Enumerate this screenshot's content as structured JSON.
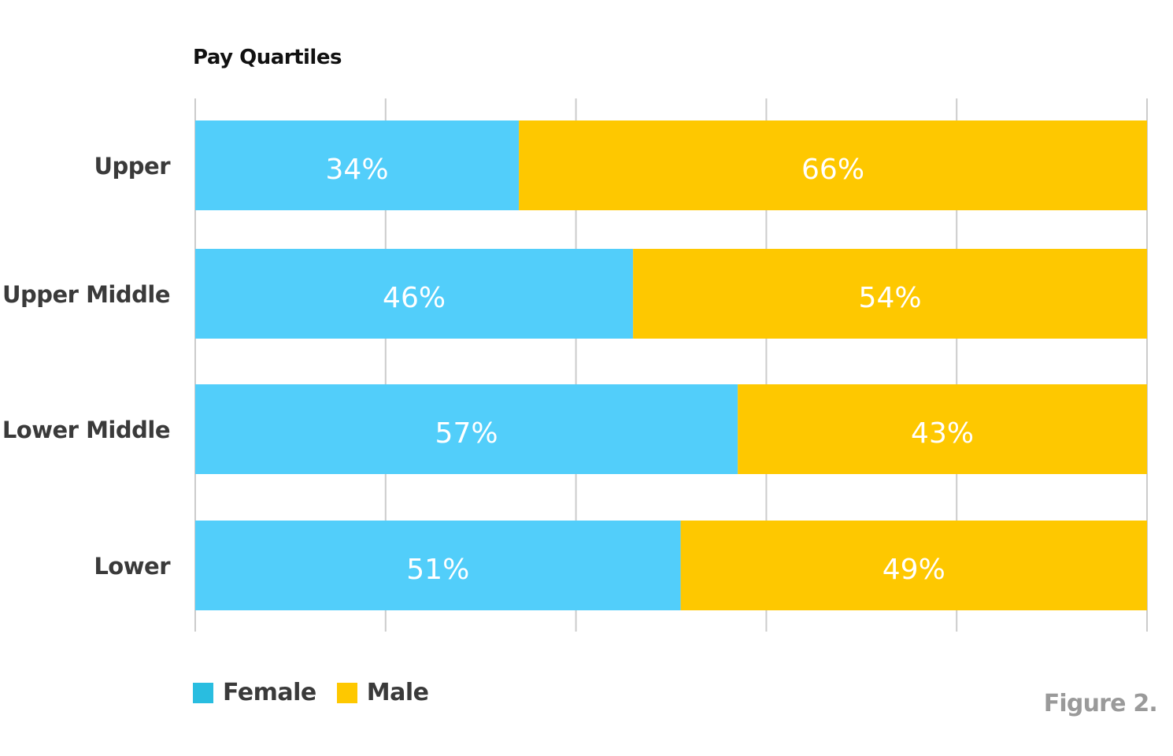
{
  "chart_data": {
    "type": "bar",
    "orientation": "horizontal",
    "stacked": true,
    "title": "Pay Quartiles",
    "categories": [
      "Upper",
      "Upper Middle",
      "Lower Middle",
      "Lower"
    ],
    "series": [
      {
        "name": "Female",
        "values": [
          34,
          46,
          57,
          51
        ],
        "labels": [
          "34%",
          "46%",
          "57%",
          "51%"
        ],
        "color": "#52cefa"
      },
      {
        "name": "Male",
        "values": [
          66,
          54,
          43,
          49
        ],
        "labels": [
          "66%",
          "54%",
          "43%",
          "49%"
        ],
        "color": "#fec800"
      }
    ],
    "xlim": [
      0,
      100
    ],
    "grid": true,
    "legend_position": "bottom-left",
    "label_color": "#ffffff",
    "category_label_color": "#3a3a3a",
    "gridline_color": "#cccccc"
  },
  "legend": {
    "items": [
      {
        "label": "Female",
        "color": "#29bde0"
      },
      {
        "label": "Male",
        "color": "#fec800"
      }
    ]
  },
  "caption": "Figure 2."
}
